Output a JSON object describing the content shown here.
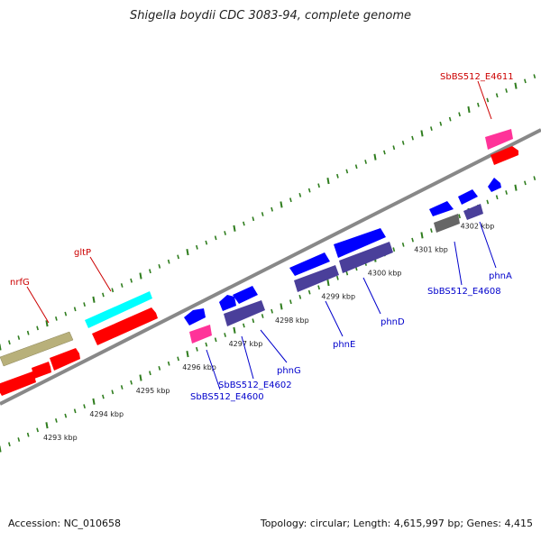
{
  "title": "Shigella boydii CDC 3083-94, complete genome",
  "footer": {
    "accession": "Accession: NC_010658",
    "summary": "Topology: circular; Length: 4,615,997 bp; Genes: 4,415"
  },
  "colors": {
    "backbone": "#888888",
    "tick": "#2f7d1e",
    "forward_cds": "#ff0000",
    "rrna_or_other": "#b8b07a",
    "highlight_gene": "#00ffff",
    "misc": "#ff3399",
    "reverse_cds": "#0000ff",
    "reverse_slate": "#4a3f9a",
    "grey_feature": "#666666",
    "label_forward": "#cc0000",
    "label_reverse": "#0000cc"
  },
  "ticks": [
    {
      "label": "4293 kbp"
    },
    {
      "label": "4294 kbp"
    },
    {
      "label": "4295 kbp"
    },
    {
      "label": "4296 kbp"
    },
    {
      "label": "4297 kbp"
    },
    {
      "label": "4298 kbp"
    },
    {
      "label": "4299 kbp"
    },
    {
      "label": "4300 kbp"
    },
    {
      "label": "4301 kbp"
    },
    {
      "label": "4302 kbp"
    }
  ],
  "labels": {
    "forward": [
      {
        "text": "nrfG"
      },
      {
        "text": "gltP"
      },
      {
        "text": "SbBS512_E4611"
      }
    ],
    "reverse": [
      {
        "text": "SbBS512_E4600"
      },
      {
        "text": "SbBS512_E4602"
      },
      {
        "text": "phnG"
      },
      {
        "text": "phnE"
      },
      {
        "text": "phnD"
      },
      {
        "text": "SbBS512_E4608"
      },
      {
        "text": "phnA"
      }
    ]
  }
}
